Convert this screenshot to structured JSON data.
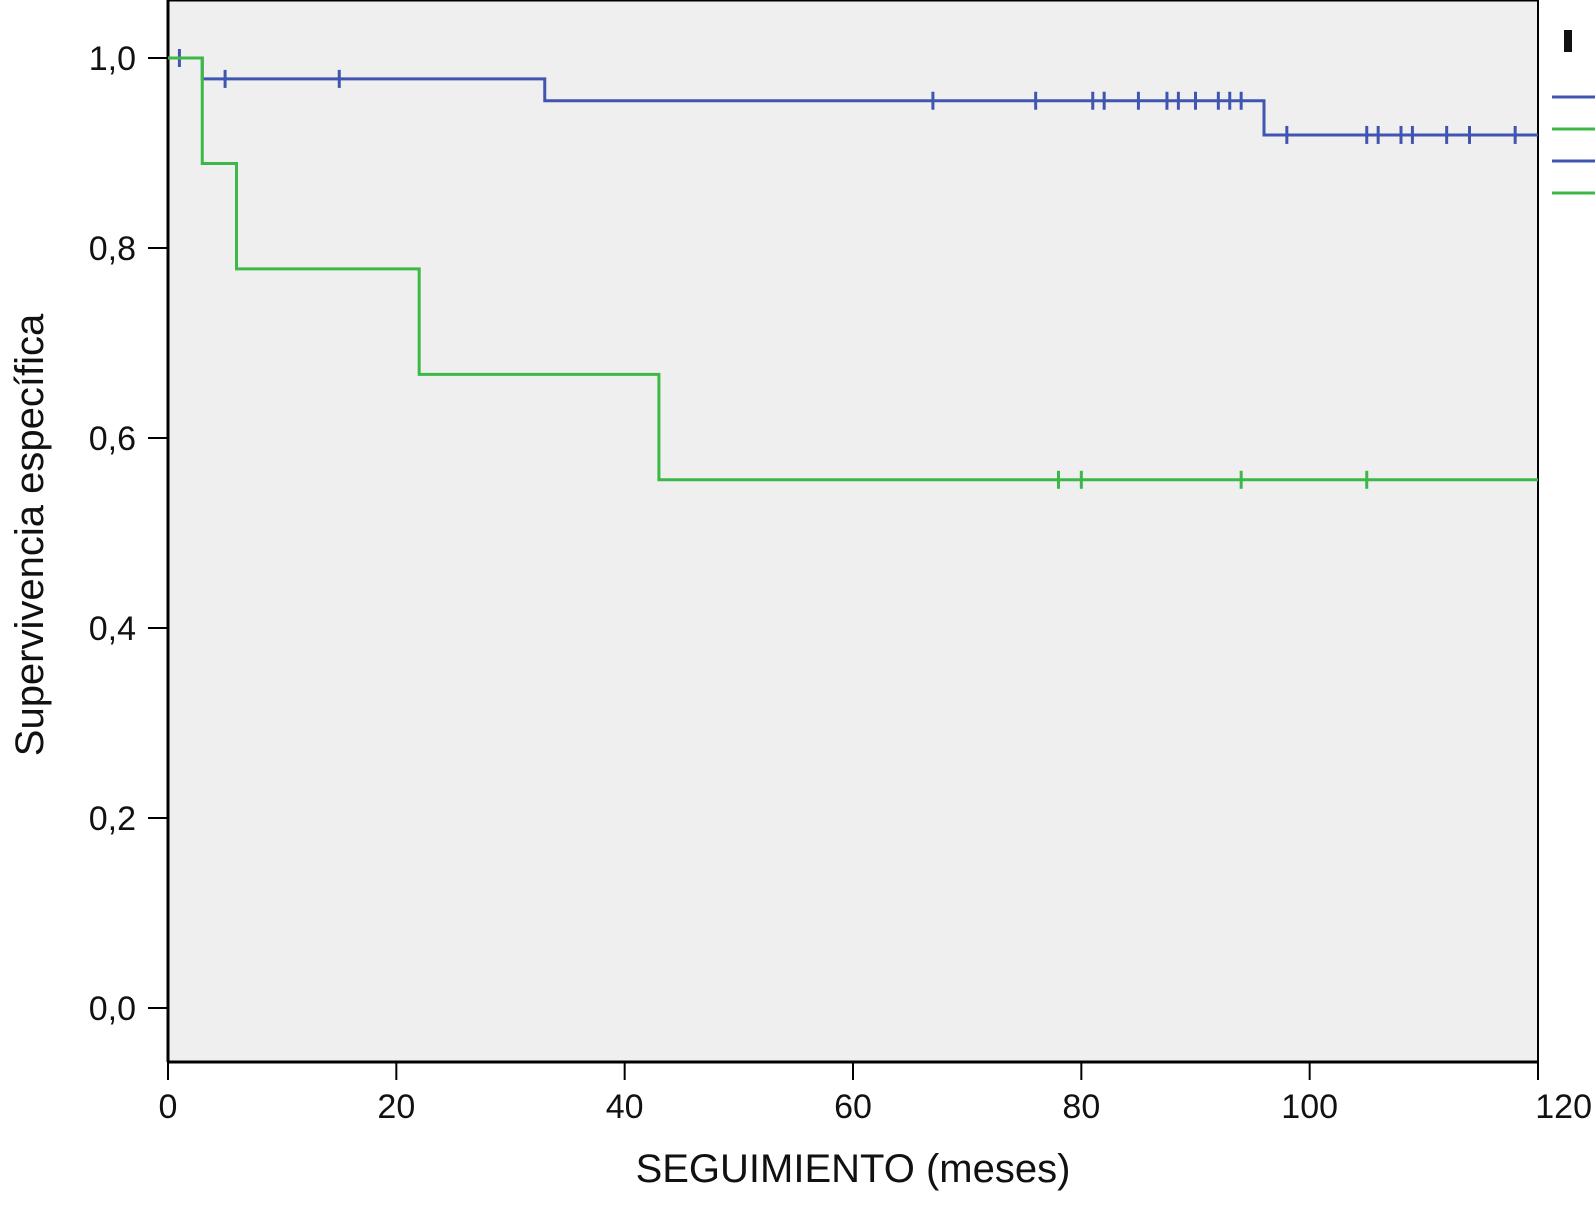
{
  "chart_data": {
    "type": "line",
    "subtype": "kaplan-meier-step",
    "xlabel": "SEGUIMIENTO (meses)",
    "ylabel": "Supervivencia específica",
    "xlim": [
      0,
      120
    ],
    "ylim": [
      0.0,
      1.0
    ],
    "x_ticks": [
      0,
      20,
      40,
      60,
      80,
      100,
      120
    ],
    "x_tick_labels": [
      "0",
      "20",
      "40",
      "60",
      "80",
      "100",
      "120"
    ],
    "y_ticks": [
      0.0,
      0.2,
      0.4,
      0.6,
      0.8,
      1.0
    ],
    "y_tick_labels": [
      "0,0",
      "0,2",
      "0,4",
      "0,6",
      "0,8",
      "1,0"
    ],
    "grid": false,
    "plot_background": "#efefef",
    "series": [
      {
        "color": "#4055b0",
        "steps": [
          [
            0,
            1.0
          ],
          [
            3,
            0.978
          ],
          [
            33,
            0.955
          ],
          [
            96,
            0.919
          ],
          [
            120,
            0.919
          ]
        ],
        "censored": [
          [
            1,
            1.0
          ],
          [
            5,
            0.978
          ],
          [
            15,
            0.978
          ],
          [
            67,
            0.955
          ],
          [
            76,
            0.955
          ],
          [
            81,
            0.955
          ],
          [
            82,
            0.955
          ],
          [
            85,
            0.955
          ],
          [
            87.5,
            0.955
          ],
          [
            88.5,
            0.955
          ],
          [
            90,
            0.955
          ],
          [
            92,
            0.955
          ],
          [
            93,
            0.955
          ],
          [
            94,
            0.955
          ],
          [
            98,
            0.919
          ],
          [
            105,
            0.919
          ],
          [
            106,
            0.919
          ],
          [
            108,
            0.919
          ],
          [
            109,
            0.919
          ],
          [
            112,
            0.919
          ],
          [
            114,
            0.919
          ],
          [
            118,
            0.919
          ]
        ]
      },
      {
        "color": "#3cb846",
        "steps": [
          [
            0,
            1.0
          ],
          [
            3,
            0.889
          ],
          [
            6,
            0.778
          ],
          [
            22,
            0.667
          ],
          [
            43,
            0.556
          ],
          [
            120,
            0.556
          ]
        ],
        "censored": [
          [
            78,
            0.556
          ],
          [
            80,
            0.556
          ],
          [
            94,
            0.556
          ],
          [
            105,
            0.556
          ]
        ]
      }
    ],
    "legend": {
      "position": "right",
      "colors": [
        "#4055b0",
        "#3cb846",
        "#4055b0",
        "#3cb846"
      ]
    }
  }
}
